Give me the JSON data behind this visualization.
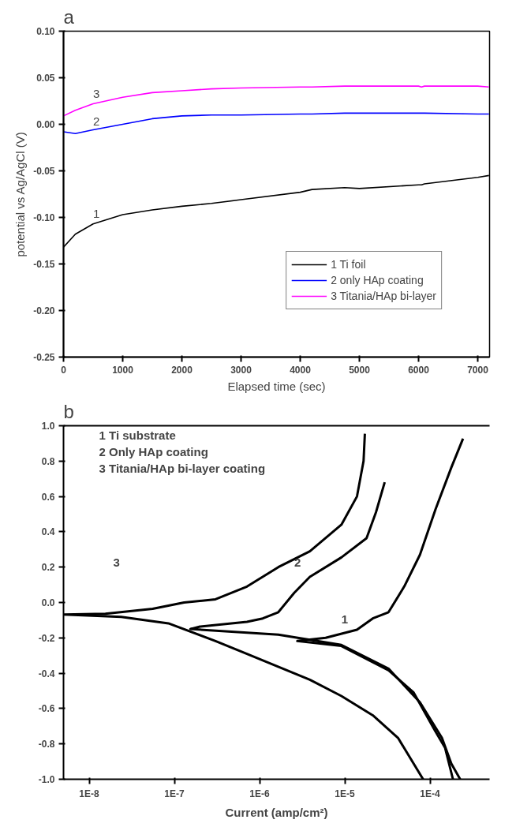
{
  "chart_data": [
    {
      "type": "line",
      "title": "a",
      "xlabel": "Elapsed time (sec)",
      "ylabel": "potential vs Ag/AgCl (V)",
      "xlim": [
        0,
        7200
      ],
      "xticks": [
        0,
        1000,
        2000,
        3000,
        4000,
        5000,
        6000,
        7000
      ],
      "ylim": [
        -0.25,
        0.1
      ],
      "yticks": [
        {
          "value": -0.25,
          "label": "-0.25"
        },
        {
          "value": -0.2,
          "label": "-0.20"
        },
        {
          "value": -0.15,
          "label": "-0.15"
        },
        {
          "value": -0.1,
          "label": "-0.10"
        },
        {
          "value": -0.05,
          "label": "-0.05"
        },
        {
          "value": 0,
          "label": "0.00"
        },
        {
          "value": 0.05,
          "label": "0.05"
        },
        {
          "value": 0.1,
          "label": "0.10"
        }
      ],
      "x": [
        0,
        200,
        500,
        1000,
        1500,
        2000,
        2500,
        3000,
        4000,
        4200,
        4750,
        5000,
        6000,
        6050,
        6100,
        7000,
        7190
      ],
      "series": [
        {
          "name": "1 Ti foil",
          "color": "#000000",
          "values": [
            -0.132,
            -0.118,
            -0.107,
            -0.097,
            -0.092,
            -0.088,
            -0.085,
            -0.081,
            -0.073,
            -0.07,
            -0.068,
            -0.069,
            -0.065,
            -0.065,
            -0.064,
            -0.057,
            -0.055
          ]
        },
        {
          "name": "2 only HAp coating",
          "color": "#0000ff",
          "values": [
            -0.008,
            -0.01,
            -0.006,
            0.0,
            0.006,
            0.009,
            0.01,
            0.01,
            0.011,
            0.011,
            0.012,
            0.012,
            0.012,
            0.012,
            0.012,
            0.011,
            0.011
          ]
        },
        {
          "name": "3 Titania/HAp bi-layer",
          "color": "#ff00ff",
          "values": [
            0.009,
            0.015,
            0.022,
            0.029,
            0.034,
            0.036,
            0.038,
            0.039,
            0.04,
            0.04,
            0.041,
            0.041,
            0.041,
            0.04,
            0.041,
            0.041,
            0.04
          ]
        }
      ],
      "annotations": [
        "1",
        "2",
        "3"
      ],
      "legend": "bottom right",
      "grid": false
    },
    {
      "type": "line",
      "title": "b",
      "xlabel": "Current (amp/cm²)",
      "log": "x",
      "xlim": [
        5e-09,
        0.0005
      ],
      "xticks": [
        {
          "value": 1e-08,
          "label": "1E-8"
        },
        {
          "value": 1e-07,
          "label": "1E-7"
        },
        {
          "value": 1e-06,
          "label": "1E-6"
        },
        {
          "value": 1e-05,
          "label": "1E-5"
        },
        {
          "value": 0.0001,
          "label": "1E-4"
        }
      ],
      "ylim": [
        -1.0,
        1.0
      ],
      "yticks": [
        {
          "value": -1.0,
          "label": "-1.0"
        },
        -0.8,
        -0.6,
        -0.4,
        -0.2,
        {
          "value": 0,
          "label": "0.0"
        },
        0.2,
        0.4,
        0.6,
        0.8,
        {
          "value": 1.0,
          "label": "1.0"
        }
      ],
      "series": [
        {
          "color": "#000000",
          "x": [
            0.000186,
            0.00015,
            0.000116,
            6.43e-05,
            3.26e-05,
            9.12e-06,
            2.77e-06,
            5.96e-06,
            1.39e-05,
            2.13e-05,
            3.26e-05,
            4.98e-05,
            7.62e-05,
            0.000116,
            0.000178,
            0.000244
          ],
          "values": [
            -1.0,
            -0.821,
            -0.73,
            -0.51,
            -0.383,
            -0.246,
            -0.218,
            -0.2,
            -0.154,
            -0.09,
            -0.055,
            0.09,
            0.27,
            0.527,
            0.764,
            0.927
          ]
        },
        {
          "color": "#000000",
          "x": [
            0.000226,
            0.000178,
            0.000138,
            7.62e-05,
            3.26e-05,
            9.12e-06,
            1.66e-06,
            1.54e-07,
            2e-07,
            7.11e-07,
            1.09e-06,
            1.66e-06,
            2.55e-06,
            3.89e-06,
            9.12e-06,
            1.8e-05,
            2.32e-05,
            2.94e-05
          ],
          "values": [
            -1.0,
            -0.912,
            -0.766,
            -0.565,
            -0.374,
            -0.24,
            -0.182,
            -0.15,
            -0.136,
            -0.109,
            -0.09,
            -0.055,
            0.055,
            0.145,
            0.255,
            0.364,
            0.51,
            0.68
          ]
        },
        {
          "color": "#000000",
          "x": [
            8.3e-05,
            6.43e-05,
            4.21e-05,
            2.13e-05,
            9.12e-06,
            3.89e-06,
            7.11e-07,
            3.04e-07,
            8.51e-08,
            2.38e-08,
            5.07e-09,
            1.55e-08,
            5.56e-08,
            1.3e-07,
            3.04e-07,
            7.11e-07,
            1.66e-06,
            3.89e-06,
            9.12e-06,
            1.39e-05,
            1.66e-05,
            1.72e-05
          ],
          "values": [
            -1.0,
            -0.912,
            -0.766,
            -0.638,
            -0.529,
            -0.437,
            -0.291,
            -0.218,
            -0.118,
            -0.081,
            -0.068,
            -0.064,
            -0.036,
            0.0,
            0.018,
            0.09,
            0.2,
            0.29,
            0.44,
            0.6,
            0.8,
            0.955
          ]
        }
      ],
      "annotations": [
        "1 Ti substrate",
        "2 Only HAp coating",
        "3 Titania/HAp bi-layer coating",
        "1",
        "2",
        "3"
      ],
      "grid": false
    }
  ]
}
